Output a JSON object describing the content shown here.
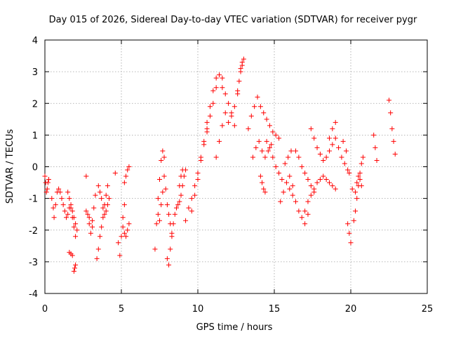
{
  "chart_data": {
    "type": "scatter",
    "title": "Day 015 of 2026, Sidereal Day-to-day VTEC variation (SDTVAR) for receiver pygr",
    "xlabel": "GPS time / hours",
    "ylabel": "SDTVAR / TECUs",
    "xlim": [
      0,
      25
    ],
    "ylim": [
      -4,
      4
    ],
    "xticks": [
      0,
      5,
      10,
      15,
      20,
      25
    ],
    "yticks": [
      -4,
      -3,
      -2,
      -1,
      0,
      1,
      2,
      3,
      4
    ],
    "grid": true,
    "marker": "+",
    "series": [
      {
        "name": "SDTVAR",
        "color": "#ff0000",
        "x": [
          0.0,
          0.05,
          0.1,
          0.15,
          0.2,
          0.25,
          0.45,
          0.55,
          0.6,
          0.7,
          0.8,
          0.9,
          1.0,
          1.1,
          1.2,
          1.3,
          1.4,
          1.5,
          1.6,
          1.7,
          1.8,
          1.9,
          2.0,
          2.1,
          1.5,
          1.6,
          1.7,
          1.8,
          1.9,
          2.0,
          1.6,
          1.7,
          1.8,
          1.9,
          1.95,
          2.0,
          2.7,
          2.8,
          2.9,
          3.0,
          3.1,
          3.2,
          3.3,
          2.7,
          2.9,
          3.1,
          3.4,
          3.5,
          3.6,
          3.7,
          3.8,
          3.9,
          4.0,
          4.1,
          3.5,
          3.6,
          3.7,
          3.8,
          3.9,
          4.0,
          4.1,
          4.2,
          4.6,
          4.8,
          4.9,
          5.0,
          5.1,
          5.2,
          5.2,
          5.3,
          5.4,
          5.5,
          5.1,
          5.2,
          5.3,
          5.4,
          5.5,
          7.2,
          7.3,
          7.4,
          7.5,
          7.6,
          7.7,
          7.8,
          7.4,
          7.5,
          7.6,
          7.7,
          7.8,
          7.9,
          8.0,
          8.1,
          8.2,
          8.3,
          8.0,
          8.1,
          8.2,
          8.3,
          8.4,
          8.5,
          8.6,
          8.7,
          8.8,
          8.9,
          9.0,
          9.1,
          9.2,
          8.8,
          8.9,
          9.0,
          9.2,
          9.4,
          9.6,
          9.8,
          10.0,
          10.2,
          10.4,
          10.6,
          9.6,
          9.8,
          10.0,
          10.2,
          10.4,
          10.6,
          10.8,
          11.0,
          11.2,
          10.6,
          10.8,
          11.0,
          11.2,
          11.4,
          11.6,
          11.6,
          11.8,
          12.0,
          12.2,
          12.4,
          11.2,
          11.4,
          11.6,
          11.8,
          12.0,
          12.2,
          12.4,
          12.6,
          12.6,
          12.7,
          12.8,
          12.9,
          12.8,
          12.9,
          13.0,
          13.3,
          13.5,
          13.7,
          13.9,
          14.1,
          14.3,
          14.5,
          14.7,
          14.9,
          15.1,
          15.3,
          13.6,
          13.8,
          14.0,
          14.2,
          14.4,
          14.6,
          14.8,
          14.1,
          14.2,
          14.3,
          14.4,
          14.5,
          14.7,
          14.9,
          15.1,
          15.3,
          15.5,
          15.7,
          15.9,
          16.1,
          15.4,
          15.6,
          15.8,
          16.0,
          16.2,
          16.0,
          16.2,
          16.4,
          16.6,
          16.8,
          17.0,
          17.2,
          16.4,
          16.6,
          16.8,
          17.0,
          17.2,
          17.4,
          17.6,
          17.0,
          17.2,
          17.4,
          17.6,
          17.8,
          18.0,
          18.2,
          18.4,
          18.6,
          18.8,
          19.0,
          17.4,
          17.6,
          17.8,
          18.0,
          18.2,
          18.4,
          18.6,
          18.8,
          19.0,
          19.2,
          19.4,
          19.6,
          19.8,
          18.6,
          18.8,
          19.0,
          19.5,
          19.7,
          19.9,
          20.1,
          19.8,
          19.9,
          20.0,
          20.2,
          20.3,
          20.4,
          20.5,
          20.6,
          20.7,
          20.8,
          20.3,
          20.4,
          20.5,
          20.6,
          20.7,
          21.5,
          21.6,
          21.7,
          22.5,
          22.6,
          22.7,
          22.8,
          22.9
        ],
        "y": [
          -0.3,
          -0.5,
          -0.8,
          -0.7,
          -0.5,
          -0.4,
          -1.0,
          -1.3,
          -1.6,
          -1.2,
          -0.8,
          -0.7,
          -0.8,
          -1.0,
          -1.2,
          -1.4,
          -1.6,
          -1.5,
          -1.3,
          -1.2,
          -1.4,
          -1.6,
          -1.8,
          -2.0,
          -0.8,
          -1.0,
          -1.3,
          -1.6,
          -1.9,
          -2.2,
          -2.7,
          -2.75,
          -2.8,
          -3.3,
          -3.2,
          -3.1,
          -0.3,
          -1.5,
          -1.8,
          -2.1,
          -1.7,
          -1.3,
          -0.9,
          -1.4,
          -1.6,
          -1.9,
          -2.9,
          -2.6,
          -2.2,
          -1.9,
          -1.6,
          -1.2,
          -0.9,
          -0.6,
          -0.6,
          -0.8,
          -1.0,
          -1.3,
          -1.5,
          -1.4,
          -1.2,
          -1.0,
          -0.2,
          -2.4,
          -2.8,
          -2.2,
          -1.6,
          -1.2,
          -0.5,
          -0.3,
          -0.1,
          0.0,
          -1.9,
          -2.1,
          -2.2,
          -2.0,
          -1.8,
          -2.6,
          -1.8,
          -1.0,
          -0.4,
          0.2,
          0.5,
          0.3,
          -1.5,
          -1.7,
          -1.2,
          -0.8,
          -0.3,
          -0.7,
          -1.2,
          -1.5,
          -1.8,
          -2.1,
          -2.9,
          -3.1,
          -2.6,
          -2.2,
          -1.8,
          -1.5,
          -1.3,
          -1.2,
          -1.1,
          -0.9,
          -0.6,
          -0.3,
          -0.1,
          -0.6,
          -0.3,
          -0.1,
          -1.7,
          -1.3,
          -1.0,
          -0.6,
          -0.2,
          0.3,
          0.7,
          1.1,
          -1.4,
          -0.9,
          -0.4,
          0.2,
          0.8,
          1.4,
          1.9,
          2.4,
          2.8,
          1.2,
          1.6,
          2.0,
          2.5,
          2.9,
          2.8,
          2.5,
          2.3,
          2.0,
          1.7,
          1.3,
          0.3,
          0.8,
          1.3,
          1.7,
          1.4,
          1.6,
          1.9,
          2.3,
          2.4,
          2.7,
          3.0,
          3.3,
          3.1,
          3.2,
          3.4,
          1.2,
          1.6,
          1.9,
          2.2,
          1.9,
          1.7,
          1.5,
          1.3,
          1.1,
          1.0,
          0.9,
          0.3,
          0.6,
          0.8,
          0.5,
          0.3,
          0.5,
          0.7,
          -0.3,
          -0.5,
          -0.7,
          -0.8,
          0.8,
          0.6,
          0.3,
          0.0,
          -0.2,
          -0.4,
          0.1,
          0.3,
          0.5,
          -1.1,
          -0.8,
          -0.5,
          -0.3,
          -0.6,
          -0.7,
          -0.9,
          -1.1,
          -1.4,
          -1.6,
          -1.8,
          -1.5,
          0.5,
          0.3,
          0.0,
          -0.2,
          -0.4,
          -0.6,
          -0.8,
          -1.4,
          -1.1,
          -0.9,
          -0.7,
          -0.5,
          -0.4,
          -0.3,
          -0.4,
          -0.5,
          -0.6,
          -0.7,
          1.2,
          0.9,
          0.6,
          0.4,
          0.2,
          0.3,
          0.5,
          0.7,
          0.9,
          0.6,
          0.3,
          0.1,
          -0.1,
          0.9,
          1.2,
          1.4,
          0.8,
          0.5,
          -0.2,
          -0.7,
          -1.8,
          -2.1,
          -2.4,
          -1.7,
          -1.4,
          -1.0,
          -0.6,
          -0.2,
          0.1,
          0.3,
          -0.8,
          -0.5,
          -0.3,
          -0.4,
          -0.6,
          1.0,
          0.6,
          0.2,
          2.1,
          1.7,
          1.2,
          0.8,
          0.4
        ]
      }
    ]
  }
}
